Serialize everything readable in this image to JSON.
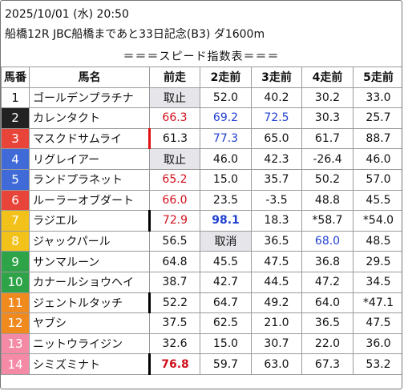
{
  "header": {
    "datetime": "2025/10/01 (水) 20:50",
    "race": "船橋12R JBC船橋まであと33日記念(B3) ダ1600m",
    "banner": "＝＝＝スピード指数表＝＝＝"
  },
  "columns": [
    "馬番",
    "馬名",
    "前走",
    "2走前",
    "3走前",
    "4走前",
    "5走前"
  ],
  "colors": {
    "frame1": "#ffffff",
    "frame2": "#222222",
    "frame3": "#e8443a",
    "frame4": "#3f6ad8",
    "frame5": "#2fa348",
    "frame6": "#f2c21b",
    "frame7": "#f08a1e",
    "frame8": "#f48aa5",
    "red_value": "#d0101b",
    "blue_value": "#1f3fd1"
  },
  "rows": [
    {
      "num": "1",
      "name": "ゴールデンプラチナ",
      "v": [
        "取止",
        "52.0",
        "40.2",
        "30.2",
        "33.0"
      ]
    },
    {
      "num": "2",
      "name": "カレンタクト",
      "v": [
        "66.3",
        "69.2",
        "72.5",
        "30.3",
        "25.7"
      ]
    },
    {
      "num": "3",
      "name": "マスクドサムライ",
      "v": [
        "61.3",
        "77.3",
        "65.0",
        "61.7",
        "88.7"
      ]
    },
    {
      "num": "4",
      "name": "リグレイアー",
      "v": [
        "取止",
        "46.0",
        "42.3",
        "-26.4",
        "46.0"
      ]
    },
    {
      "num": "5",
      "name": "ランドプラネット",
      "v": [
        "65.2",
        "15.0",
        "35.7",
        "50.2",
        "57.0"
      ]
    },
    {
      "num": "6",
      "name": "ルーラーオブダート",
      "v": [
        "66.0",
        "23.5",
        "-3.5",
        "48.8",
        "45.5"
      ]
    },
    {
      "num": "7",
      "name": "ラジエル",
      "v": [
        "72.9",
        "98.1",
        "18.3",
        "*58.7",
        "*54.0"
      ]
    },
    {
      "num": "8",
      "name": "ジャックパール",
      "v": [
        "56.5",
        "取消",
        "36.5",
        "68.0",
        "48.5"
      ]
    },
    {
      "num": "9",
      "name": "サンマルーン",
      "v": [
        "64.8",
        "45.5",
        "47.5",
        "36.8",
        "29.5"
      ]
    },
    {
      "num": "10",
      "name": "カナールショウヘイ",
      "v": [
        "38.7",
        "42.7",
        "44.5",
        "47.2",
        "34.5"
      ]
    },
    {
      "num": "11",
      "name": "ジェントルタッチ",
      "v": [
        "52.2",
        "64.7",
        "49.2",
        "64.0",
        "*47.1"
      ]
    },
    {
      "num": "12",
      "name": "ヤブシ",
      "v": [
        "37.5",
        "62.5",
        "21.0",
        "36.5",
        "47.5"
      ]
    },
    {
      "num": "13",
      "name": "ニットウライジン",
      "v": [
        "32.6",
        "15.0",
        "30.7",
        "22.0",
        "36.0"
      ]
    },
    {
      "num": "14",
      "name": "シミズミナト",
      "v": [
        "76.8",
        "59.7",
        "63.0",
        "67.3",
        "53.2"
      ]
    }
  ]
}
